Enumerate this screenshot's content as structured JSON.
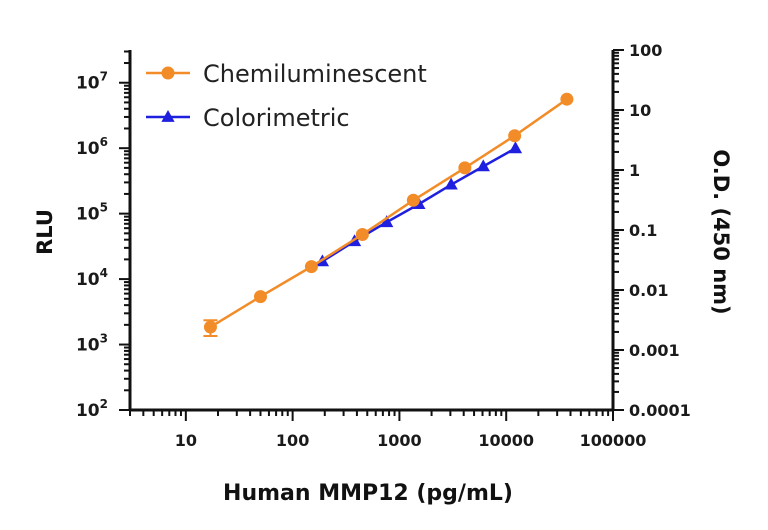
{
  "chart_data": {
    "type": "line",
    "x_scale": "log",
    "xlabel": "Human MMP12 (pg/mL)",
    "ylabel": "RLU",
    "y2label": "O.D. (450 nm)",
    "xlim": [
      3,
      100000
    ],
    "ylim": [
      100,
      31622776
    ],
    "y2lim": [
      0.0001,
      100
    ],
    "x_ticks": [
      {
        "value": 10,
        "label": "10"
      },
      {
        "value": 100,
        "label": "100"
      },
      {
        "value": 1000,
        "label": "1000"
      },
      {
        "value": 10000,
        "label": "10000"
      },
      {
        "value": 100000,
        "label": "100000"
      }
    ],
    "y_ticks": [
      {
        "value": 100,
        "base": "10",
        "exp": "2"
      },
      {
        "value": 1000,
        "base": "10",
        "exp": "3"
      },
      {
        "value": 10000,
        "base": "10",
        "exp": "4"
      },
      {
        "value": 100000,
        "base": "10",
        "exp": "5"
      },
      {
        "value": 1000000,
        "base": "10",
        "exp": "6"
      },
      {
        "value": 10000000,
        "base": "10",
        "exp": "7"
      }
    ],
    "y2_ticks": [
      {
        "value": 0.0001,
        "label": "0.0001"
      },
      {
        "value": 0.001,
        "label": "0.001"
      },
      {
        "value": 0.01,
        "label": "0.01"
      },
      {
        "value": 0.1,
        "label": "0.1"
      },
      {
        "value": 1,
        "label": "1"
      },
      {
        "value": 10,
        "label": "10"
      },
      {
        "value": 100,
        "label": "100"
      }
    ],
    "legend_position": "top-left",
    "series": [
      {
        "name": "Chemiluminescent",
        "axis": "left",
        "color": "#f28c28",
        "marker": "circle",
        "x": [
          17,
          50,
          150,
          450,
          1350,
          4100,
          12000,
          37000
        ],
        "y": [
          1850,
          5400,
          15500,
          48000,
          160000,
          500000,
          1550000,
          5600000
        ],
        "error": [
          500,
          0,
          0,
          0,
          0,
          0,
          0,
          0
        ]
      },
      {
        "name": "Colorimetric",
        "axis": "right",
        "color": "#1f1fe0",
        "marker": "triangle",
        "x": [
          190,
          380,
          760,
          1520,
          3050,
          6100,
          12200
        ],
        "y": [
          0.03,
          0.065,
          0.135,
          0.27,
          0.57,
          1.15,
          2.3
        ]
      }
    ]
  }
}
